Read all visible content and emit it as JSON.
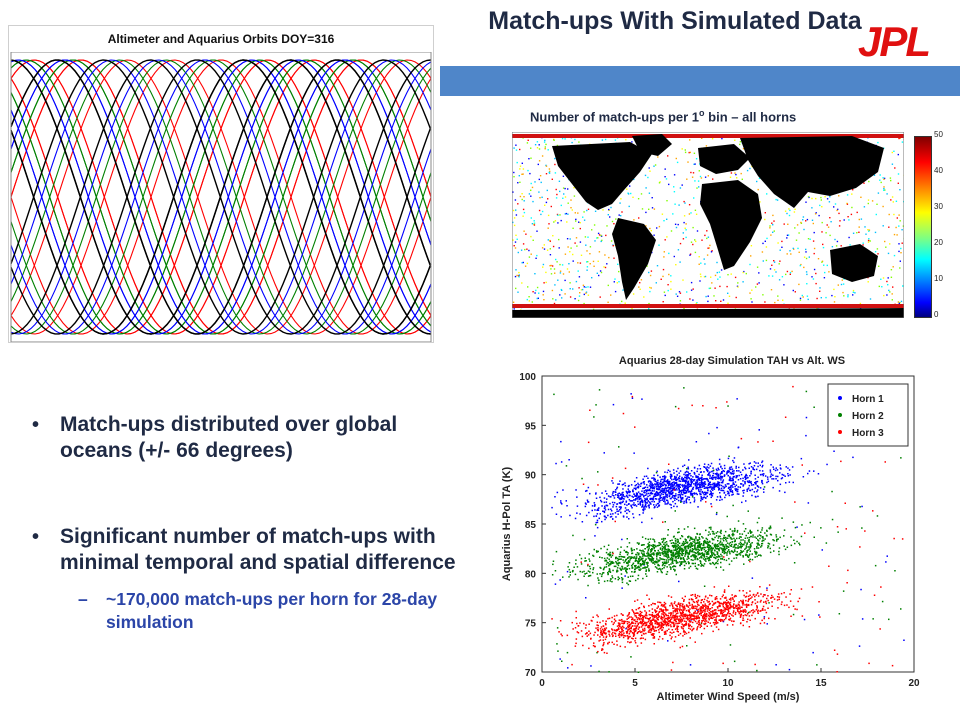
{
  "title": "Match-ups With Simulated Data",
  "logo": "JPL",
  "orbit_map": {
    "title": "Altimeter and Aquarius Orbits DOY=316"
  },
  "matchup_map": {
    "title": "Number of match-ups per 1",
    "title_deg": "o",
    "title_tail": " bin – all horns",
    "colorbar_ticks": [
      "50",
      "40",
      "30",
      "20",
      "10",
      "0"
    ]
  },
  "bullets": [
    "Match-ups distributed over global oceans (+/- 66 degrees)",
    "Significant number of match-ups with minimal temporal and spatial difference"
  ],
  "sub_bullet": "~170,000 match-ups per horn for 28-day simulation",
  "chart_data": {
    "type": "scatter",
    "title": "Aquarius 28-day Simulation TAH vs Alt. WS",
    "xlabel": "Altimeter Wind Speed (m/s)",
    "ylabel": "Aquarius H-Pol TA (K)",
    "xlim": [
      0,
      20
    ],
    "ylim": [
      70,
      100
    ],
    "xticks": [
      0,
      5,
      10,
      15,
      20
    ],
    "yticks": [
      70,
      75,
      80,
      85,
      90,
      95,
      100
    ],
    "legend_position": "top-right",
    "series": [
      {
        "name": "Horn 1",
        "color": "#0000ff",
        "x": [
          3.5,
          4,
          4.5,
          5,
          5.5,
          6,
          6.5,
          7,
          7.5,
          8,
          8.5,
          9,
          9.5,
          10,
          10.5,
          11,
          11.5,
          12,
          12.5,
          13,
          14,
          15,
          16
        ],
        "y": [
          87,
          87.3,
          87.6,
          87.9,
          88.1,
          88.3,
          88.5,
          88.7,
          88.8,
          89,
          89.1,
          89.3,
          89.4,
          89.5,
          89.6,
          89.7,
          89.8,
          89.9,
          90,
          90.1,
          90.3,
          90.5,
          90.6
        ]
      },
      {
        "name": "Horn 2",
        "color": "#008000",
        "x": [
          3.5,
          4,
          4.5,
          5,
          5.5,
          6,
          6.5,
          7,
          7.5,
          8,
          8.5,
          9,
          9.5,
          10,
          10.5,
          11,
          11.5,
          12,
          12.5,
          13,
          14,
          15,
          16
        ],
        "y": [
          80.8,
          81,
          81.2,
          81.4,
          81.6,
          81.8,
          82,
          82.1,
          82.3,
          82.4,
          82.5,
          82.7,
          82.8,
          83,
          83.1,
          83.2,
          83.3,
          83.5,
          83.6,
          83.7,
          84,
          84.2,
          84.4
        ]
      },
      {
        "name": "Horn 3",
        "color": "#ff0000",
        "x": [
          3.5,
          4,
          4.5,
          5,
          5.5,
          6,
          6.5,
          7,
          7.5,
          8,
          8.5,
          9,
          9.5,
          10,
          10.5,
          11,
          11.5,
          12,
          12.5,
          13,
          14,
          15,
          16
        ],
        "y": [
          74.2,
          74.4,
          74.6,
          74.8,
          75,
          75.2,
          75.4,
          75.6,
          75.7,
          75.9,
          76,
          76.2,
          76.3,
          76.5,
          76.6,
          76.7,
          76.9,
          77,
          77.1,
          77.2,
          77.5,
          77.7,
          77.9
        ]
      }
    ]
  }
}
